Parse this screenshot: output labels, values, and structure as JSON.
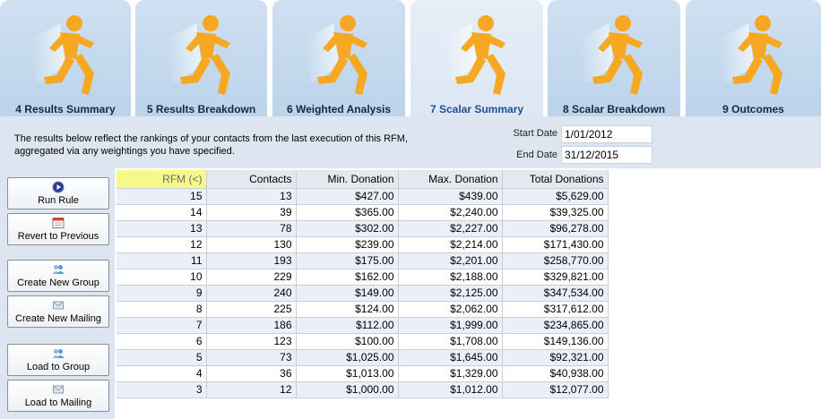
{
  "colors": {
    "tab_bg": "#c4d8ec",
    "tab_active_bg": "#e2ebf5",
    "active_tab_text": "#1f4e96",
    "runner_orange": "#f7a823",
    "sort_highlight": "#f5f98c",
    "row_alt": "#eceffa",
    "panel_bg": "#dde6f0"
  },
  "tabs": [
    {
      "label": "4 Results Summary",
      "icon": "running-man-icon",
      "active": false
    },
    {
      "label": "5 Results Breakdown",
      "icon": "running-man-icon",
      "active": false
    },
    {
      "label": "6 Weighted Analysis",
      "icon": "running-man-icon",
      "active": false
    },
    {
      "label": "7 Scalar Summary",
      "icon": "running-man-icon",
      "active": true
    },
    {
      "label": "8 Scalar Breakdown",
      "icon": "running-man-icon",
      "active": false
    },
    {
      "label": "9 Outcomes",
      "icon": "running-man-icon",
      "active": false
    }
  ],
  "info": {
    "line1": "The results below reflect the rankings of your contacts from the last execution of this RFM,",
    "line2": "aggregated via any weightings you have specified.",
    "start_label": "Start Date",
    "start_value": "1/01/2012",
    "end_label": "End Date",
    "end_value": "31/12/2015"
  },
  "buttons": [
    {
      "label": "Run Rule",
      "icon": "play-icon"
    },
    {
      "label": "Revert to Previous",
      "icon": "calendar-icon"
    },
    {
      "label": "Create New Group",
      "icon": "group-icon"
    },
    {
      "label": "Create New Mailing",
      "icon": "mailing-icon"
    },
    {
      "label": "Load to Group",
      "icon": "group-icon"
    },
    {
      "label": "Load to Mailing",
      "icon": "mailing-icon"
    }
  ],
  "table": {
    "columns": [
      "RFM (<)",
      "Contacts",
      "Min. Donation",
      "Max. Donation",
      "Total Donations"
    ],
    "sorted_column": 0,
    "rows": [
      [
        "15",
        "13",
        "$427.00",
        "$439.00",
        "$5,629.00"
      ],
      [
        "14",
        "39",
        "$365.00",
        "$2,240.00",
        "$39,325.00"
      ],
      [
        "13",
        "78",
        "$302.00",
        "$2,227.00",
        "$96,278.00"
      ],
      [
        "12",
        "130",
        "$239.00",
        "$2,214.00",
        "$171,430.00"
      ],
      [
        "11",
        "193",
        "$175.00",
        "$2,201.00",
        "$258,770.00"
      ],
      [
        "10",
        "229",
        "$162.00",
        "$2,188.00",
        "$329,821.00"
      ],
      [
        "9",
        "240",
        "$149.00",
        "$2,125.00",
        "$347,534.00"
      ],
      [
        "8",
        "225",
        "$124.00",
        "$2,062.00",
        "$317,612.00"
      ],
      [
        "7",
        "186",
        "$112.00",
        "$1,999.00",
        "$234,865.00"
      ],
      [
        "6",
        "123",
        "$100.00",
        "$1,708.00",
        "$149,136.00"
      ],
      [
        "5",
        "73",
        "$1,025.00",
        "$1,645.00",
        "$92,321.00"
      ],
      [
        "4",
        "36",
        "$1,013.00",
        "$1,329.00",
        "$40,938.00"
      ],
      [
        "3",
        "12",
        "$1,000.00",
        "$1,012.00",
        "$12,077.00"
      ]
    ]
  }
}
